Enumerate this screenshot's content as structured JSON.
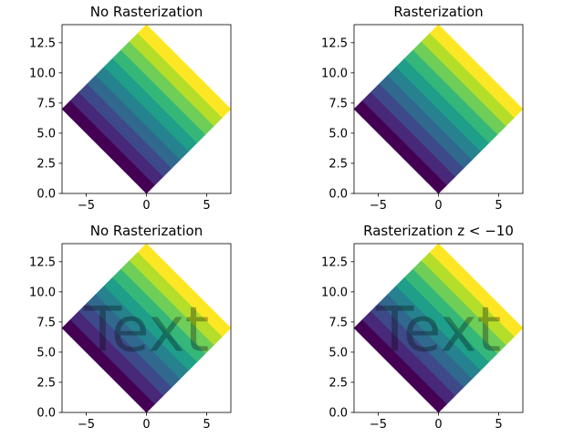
{
  "chart_data": [
    {
      "type": "heatmap",
      "title": "No Rasterization",
      "overlay_text": "",
      "xlim": [
        -7,
        7
      ],
      "ylim": [
        0,
        14
      ],
      "x_ticks": [
        -5,
        0,
        5
      ],
      "x_tick_labels": [
        "−5",
        "0",
        "5"
      ],
      "y_ticks": [
        0,
        2.5,
        5,
        7.5,
        10,
        12.5
      ],
      "y_tick_labels": [
        "0.0",
        "2.5",
        "5.0",
        "7.5",
        "10.0",
        "12.5"
      ],
      "shape": "square rotated 45° with corners at (0,0), (7,7), (0,14), (-7,7)",
      "bands": 10,
      "colormap": [
        "#440154",
        "#482878",
        "#3e4989",
        "#31688e",
        "#26828e",
        "#1f9e89",
        "#35b779",
        "#6ece58",
        "#b5de2b",
        "#fde725"
      ]
    },
    {
      "type": "heatmap",
      "title": "Rasterization",
      "overlay_text": "",
      "xlim": [
        -7,
        7
      ],
      "ylim": [
        0,
        14
      ],
      "x_ticks": [
        -5,
        0,
        5
      ],
      "x_tick_labels": [
        "−5",
        "0",
        "5"
      ],
      "y_ticks": [
        0,
        2.5,
        5,
        7.5,
        10,
        12.5
      ],
      "y_tick_labels": [
        "0.0",
        "2.5",
        "5.0",
        "7.5",
        "10.0",
        "12.5"
      ],
      "shape": "square rotated 45° with corners at (0,0), (7,7), (0,14), (-7,7)",
      "bands": 10,
      "colormap": [
        "#440154",
        "#482878",
        "#3e4989",
        "#31688e",
        "#26828e",
        "#1f9e89",
        "#35b779",
        "#6ece58",
        "#b5de2b",
        "#fde725"
      ]
    },
    {
      "type": "heatmap",
      "title": "No Rasterization",
      "overlay_text": "Text",
      "xlim": [
        -7,
        7
      ],
      "ylim": [
        0,
        14
      ],
      "x_ticks": [
        -5,
        0,
        5
      ],
      "x_tick_labels": [
        "−5",
        "0",
        "5"
      ],
      "y_ticks": [
        0,
        2.5,
        5,
        7.5,
        10,
        12.5
      ],
      "y_tick_labels": [
        "0.0",
        "2.5",
        "5.0",
        "7.5",
        "10.0",
        "12.5"
      ],
      "shape": "square rotated 45° with corners at (0,0), (7,7), (0,14), (-7,7)",
      "bands": 10,
      "colormap": [
        "#440154",
        "#482878",
        "#3e4989",
        "#31688e",
        "#26828e",
        "#1f9e89",
        "#35b779",
        "#6ece58",
        "#b5de2b",
        "#fde725"
      ]
    },
    {
      "type": "heatmap",
      "title": "Rasterization z < −10",
      "overlay_text": "Text",
      "xlim": [
        -7,
        7
      ],
      "ylim": [
        0,
        14
      ],
      "x_ticks": [
        -5,
        0,
        5
      ],
      "x_tick_labels": [
        "−5",
        "0",
        "5"
      ],
      "y_ticks": [
        0,
        2.5,
        5,
        7.5,
        10,
        12.5
      ],
      "y_tick_labels": [
        "0.0",
        "2.5",
        "5.0",
        "7.5",
        "10.0",
        "12.5"
      ],
      "shape": "square rotated 45° with corners at (0,0), (7,7), (0,14), (-7,7)",
      "bands": 10,
      "colormap": [
        "#440154",
        "#482878",
        "#3e4989",
        "#31688e",
        "#26828e",
        "#1f9e89",
        "#35b779",
        "#6ece58",
        "#b5de2b",
        "#fde725"
      ]
    }
  ]
}
